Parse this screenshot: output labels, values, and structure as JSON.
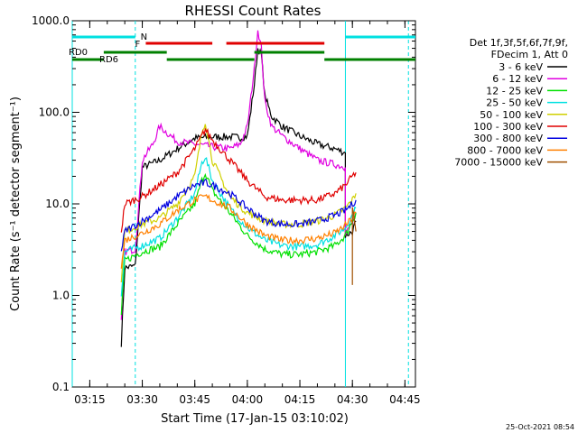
{
  "chart_data": {
    "type": "line",
    "title": "RHESSI Count Rates",
    "xlabel": "Start Time (17-Jan-15 03:10:02)",
    "ylabel": "Count Rate (s⁻¹ detector segment⁻¹)",
    "yscale": "log",
    "ylim": [
      0.1,
      1000
    ],
    "xlim": [
      "03:10",
      "04:48"
    ],
    "x_ticks": [
      "03:15",
      "03:30",
      "03:45",
      "04:00",
      "04:15",
      "04:30",
      "04:45"
    ],
    "y_ticks": [
      "0.1",
      "1.0",
      "10.0",
      "100.0",
      "1000.0"
    ],
    "legend_header": [
      "Det 1f,3f,5f,6f,7f,9f,",
      "FDecim 1, Att 0"
    ],
    "legend_position": "right",
    "footer_timestamp": "25-Oct-2021 08:54",
    "series": [
      {
        "name": "3 - 6 keV",
        "color": "#000000",
        "x": [
          "03:24",
          "03:25",
          "03:28",
          "03:30",
          "03:35",
          "03:40",
          "03:45",
          "03:50",
          "03:55",
          "03:58",
          "04:00",
          "04:02",
          "04:03",
          "04:04",
          "04:05",
          "04:07",
          "04:10",
          "04:15",
          "04:20",
          "04:25",
          "04:28",
          "04:28",
          "04:30",
          "04:31"
        ],
        "y": [
          0.3,
          2.0,
          2.1,
          25,
          30,
          40,
          52,
          54,
          54,
          53,
          55,
          200,
          500,
          420,
          150,
          90,
          70,
          55,
          45,
          40,
          36,
          4.5,
          5,
          6.5
        ]
      },
      {
        "name": "6 - 12 keV",
        "color": "#e000e0",
        "x": [
          "03:24",
          "03:25",
          "03:28",
          "03:30",
          "03:33",
          "03:35",
          "03:37",
          "03:40",
          "03:45",
          "03:50",
          "03:55",
          "03:58",
          "04:00",
          "04:02",
          "04:03",
          "04:04",
          "04:05",
          "04:07",
          "04:10",
          "04:15",
          "04:20",
          "04:25",
          "04:28",
          "04:28",
          "04:30",
          "04:31"
        ],
        "y": [
          0.5,
          3.0,
          3.2,
          30,
          45,
          70,
          60,
          48,
          45,
          42,
          40,
          45,
          70,
          300,
          800,
          500,
          130,
          70,
          55,
          40,
          30,
          27,
          25,
          5,
          6,
          8
        ]
      },
      {
        "name": "12 - 25 keV",
        "color": "#00e000",
        "x": [
          "03:24",
          "03:25",
          "03:30",
          "03:35",
          "03:40",
          "03:45",
          "03:47",
          "03:48",
          "03:50",
          "03:55",
          "04:00",
          "04:05",
          "04:10",
          "04:15",
          "04:20",
          "04:25",
          "04:28",
          "04:30",
          "04:31"
        ],
        "y": [
          0.6,
          2.4,
          3.0,
          3.4,
          6,
          10,
          18,
          22,
          14,
          8,
          4.5,
          3.2,
          2.8,
          2.8,
          3.0,
          3.5,
          4.5,
          6.5,
          8
        ]
      },
      {
        "name": "25 - 50 keV",
        "color": "#00e0e0",
        "x": [
          "03:24",
          "03:25",
          "03:30",
          "03:35",
          "03:40",
          "03:45",
          "03:47",
          "03:48",
          "03:50",
          "03:55",
          "04:00",
          "04:05",
          "04:10",
          "04:15",
          "04:20",
          "04:25",
          "04:28",
          "04:30",
          "04:31"
        ],
        "y": [
          1.0,
          3.0,
          3.5,
          4.2,
          7,
          13,
          28,
          33,
          18,
          9,
          5.5,
          4.0,
          3.5,
          3.4,
          3.6,
          4.5,
          5.5,
          7.5,
          9
        ]
      },
      {
        "name": "50 - 100 keV",
        "color": "#d0d000",
        "x": [
          "03:24",
          "03:25",
          "03:30",
          "03:35",
          "03:40",
          "03:45",
          "03:47",
          "03:48",
          "03:50",
          "03:55",
          "04:00",
          "04:05",
          "04:10",
          "04:15",
          "04:20",
          "04:25",
          "04:28",
          "04:30",
          "04:31"
        ],
        "y": [
          1.5,
          5,
          6,
          7,
          10,
          20,
          60,
          80,
          30,
          12,
          8,
          6.5,
          6,
          6,
          6.5,
          7.5,
          9,
          11,
          13
        ]
      },
      {
        "name": "100 - 300 keV",
        "color": "#e00000",
        "x": [
          "03:24",
          "03:25",
          "03:30",
          "03:35",
          "03:40",
          "03:45",
          "03:48",
          "03:50",
          "03:55",
          "04:00",
          "04:05",
          "04:10",
          "04:15",
          "04:20",
          "04:25",
          "04:28",
          "04:30",
          "04:31"
        ],
        "y": [
          5,
          10,
          12,
          16,
          22,
          40,
          65,
          50,
          30,
          18,
          12,
          11,
          11,
          11,
          13,
          16,
          20,
          22
        ]
      },
      {
        "name": "300 - 800 keV",
        "color": "#0000e0",
        "x": [
          "03:24",
          "03:25",
          "03:30",
          "03:35",
          "03:40",
          "03:45",
          "03:48",
          "03:50",
          "03:55",
          "04:00",
          "04:05",
          "04:10",
          "04:15",
          "04:20",
          "04:25",
          "04:28",
          "04:30",
          "04:31"
        ],
        "y": [
          3,
          5,
          6.5,
          8.5,
          12,
          16,
          17,
          16,
          13,
          9,
          6.5,
          6,
          6,
          6.5,
          7.5,
          8.5,
          10,
          11
        ]
      },
      {
        "name": "800 - 7000 keV",
        "color": "#ff8000",
        "x": [
          "03:24",
          "03:25",
          "03:30",
          "03:35",
          "03:40",
          "03:45",
          "03:48",
          "03:50",
          "03:55",
          "04:00",
          "04:05",
          "04:10",
          "04:15",
          "04:20",
          "04:25",
          "04:28",
          "04:30",
          "04:31"
        ],
        "y": [
          2,
          4,
          4.8,
          6,
          8.5,
          11,
          12,
          11,
          9,
          6,
          4.5,
          4,
          4,
          4.2,
          4.8,
          5.8,
          7,
          8
        ]
      },
      {
        "name": "7000 - 15000 keV",
        "color": "#a05000",
        "x": [
          "04:30",
          "04:30",
          "04:31"
        ],
        "y": [
          1.3,
          9,
          5
        ]
      }
    ],
    "annotations": {
      "attenuator_segments": {
        "color": "#00e0e0",
        "segments": [
          [
            "03:10",
            "03:28"
          ],
          [
            "04:28",
            "04:48"
          ]
        ],
        "label": "N",
        "label_at": "03:29"
      },
      "flag_segments": {
        "color": "#e00000",
        "segments": [
          [
            "03:31",
            "03:50"
          ],
          [
            "03:54",
            "04:22"
          ]
        ],
        "label": "F",
        "label_at": "03:30"
      },
      "decim_segments": {
        "color": "#008000",
        "labels": [
          "RD0",
          "RD6"
        ],
        "upper": [
          [
            "03:19",
            "03:37"
          ],
          [
            "04:02",
            "04:22"
          ]
        ],
        "lower": [
          [
            "03:10",
            "03:19"
          ],
          [
            "03:37",
            "04:02"
          ],
          [
            "04:22",
            "04:48"
          ]
        ]
      },
      "vertical_markers": [
        {
          "time": "03:10",
          "color": "#00e0e0",
          "style": "solid"
        },
        {
          "time": "03:28",
          "color": "#00e0e0",
          "style": "dashed"
        },
        {
          "time": "04:28",
          "color": "#00e0e0",
          "style": "solid"
        },
        {
          "time": "04:46",
          "color": "#00e0e0",
          "style": "dashed"
        }
      ]
    }
  }
}
